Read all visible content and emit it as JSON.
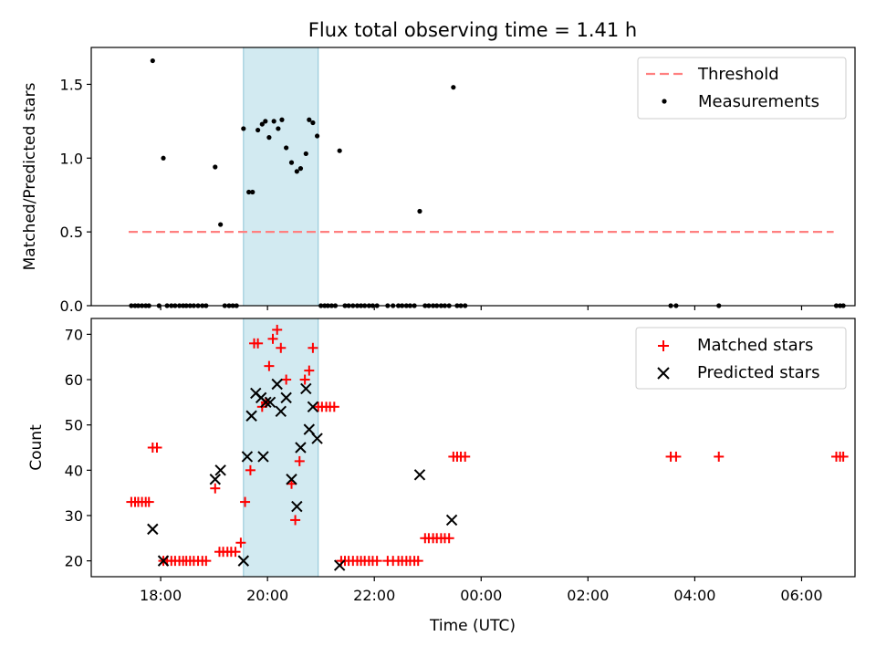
{
  "chart_data": [
    {
      "type": "scatter",
      "panel": "top",
      "title": "Flux total observing time = 1.41 h",
      "xlabel": "",
      "ylabel": "Matched/Predicted stars",
      "ylim": [
        0,
        1.75
      ],
      "yticks": [
        0.0,
        0.5,
        1.0,
        1.5
      ],
      "ytick_labels": [
        "0.0",
        "0.5",
        "1.0",
        "1.5"
      ],
      "xlim_hours": [
        16.7,
        31.0
      ],
      "highlight_span_hours": [
        19.55,
        20.95
      ],
      "threshold": {
        "name": "Threshold",
        "y": 0.5,
        "x_range_hours": [
          17.4,
          30.6
        ],
        "color": "#ff8080"
      },
      "legend": [
        "Threshold",
        "Measurements"
      ],
      "legend_position": "top-right",
      "series": [
        {
          "name": "Measurements",
          "color": "#000000",
          "points": [
            [
              17.45,
              0
            ],
            [
              17.52,
              0
            ],
            [
              17.58,
              0
            ],
            [
              17.65,
              0
            ],
            [
              17.72,
              0
            ],
            [
              17.78,
              0
            ],
            [
              17.85,
              1.66
            ],
            [
              17.97,
              0
            ],
            [
              18.05,
              1.0
            ],
            [
              18.12,
              0
            ],
            [
              18.2,
              0
            ],
            [
              18.27,
              0
            ],
            [
              18.35,
              0
            ],
            [
              18.42,
              0
            ],
            [
              18.48,
              0
            ],
            [
              18.55,
              0
            ],
            [
              18.62,
              0
            ],
            [
              18.7,
              0
            ],
            [
              18.78,
              0
            ],
            [
              18.85,
              0
            ],
            [
              19.02,
              0.94
            ],
            [
              19.12,
              0.55
            ],
            [
              19.2,
              0
            ],
            [
              19.28,
              0
            ],
            [
              19.35,
              0
            ],
            [
              19.42,
              0
            ],
            [
              19.55,
              1.2
            ],
            [
              19.65,
              0.77
            ],
            [
              19.72,
              0.77
            ],
            [
              19.82,
              1.19
            ],
            [
              19.9,
              1.23
            ],
            [
              19.96,
              1.25
            ],
            [
              20.03,
              1.14
            ],
            [
              20.12,
              1.25
            ],
            [
              20.2,
              1.2
            ],
            [
              20.27,
              1.26
            ],
            [
              20.35,
              1.07
            ],
            [
              20.45,
              0.97
            ],
            [
              20.55,
              0.91
            ],
            [
              20.62,
              0.93
            ],
            [
              20.72,
              1.03
            ],
            [
              20.78,
              1.26
            ],
            [
              20.85,
              1.24
            ],
            [
              20.93,
              1.15
            ],
            [
              21.0,
              0
            ],
            [
              21.07,
              0
            ],
            [
              21.13,
              0
            ],
            [
              21.2,
              0
            ],
            [
              21.27,
              0
            ],
            [
              21.35,
              1.05
            ],
            [
              21.45,
              0
            ],
            [
              21.52,
              0
            ],
            [
              21.6,
              0
            ],
            [
              21.68,
              0
            ],
            [
              21.75,
              0
            ],
            [
              21.82,
              0
            ],
            [
              21.9,
              0
            ],
            [
              21.97,
              0
            ],
            [
              22.05,
              0
            ],
            [
              22.25,
              0
            ],
            [
              22.35,
              0
            ],
            [
              22.45,
              0
            ],
            [
              22.52,
              0
            ],
            [
              22.6,
              0
            ],
            [
              22.67,
              0
            ],
            [
              22.75,
              0
            ],
            [
              22.85,
              0.64
            ],
            [
              22.95,
              0
            ],
            [
              23.02,
              0
            ],
            [
              23.1,
              0
            ],
            [
              23.17,
              0
            ],
            [
              23.25,
              0
            ],
            [
              23.32,
              0
            ],
            [
              23.4,
              0
            ],
            [
              23.48,
              1.48
            ],
            [
              23.55,
              0
            ],
            [
              23.62,
              0
            ],
            [
              23.7,
              0
            ],
            [
              27.55,
              0
            ],
            [
              27.65,
              0
            ],
            [
              28.45,
              0
            ],
            [
              30.65,
              0
            ],
            [
              30.72,
              0
            ],
            [
              30.78,
              0
            ]
          ]
        }
      ]
    },
    {
      "type": "scatter",
      "panel": "bottom",
      "title": "",
      "xlabel": "Time (UTC)",
      "ylabel": "Count",
      "ylim": [
        16.5,
        73.5
      ],
      "yticks": [
        20,
        30,
        40,
        50,
        60,
        70
      ],
      "ytick_labels": [
        "20",
        "30",
        "40",
        "50",
        "60",
        "70"
      ],
      "xlim_hours": [
        16.7,
        31.0
      ],
      "xticks_hours": [
        18,
        20,
        22,
        24,
        26,
        28,
        30
      ],
      "xtick_labels": [
        "18:00",
        "20:00",
        "22:00",
        "00:00",
        "02:00",
        "04:00",
        "06:00"
      ],
      "highlight_span_hours": [
        19.55,
        20.95
      ],
      "legend": [
        "Matched stars",
        "Predicted stars"
      ],
      "legend_position": "top-right",
      "series": [
        {
          "name": "Matched stars",
          "marker": "+",
          "color": "#ff0000",
          "points": [
            [
              17.45,
              33
            ],
            [
              17.52,
              33
            ],
            [
              17.58,
              33
            ],
            [
              17.65,
              33
            ],
            [
              17.72,
              33
            ],
            [
              17.78,
              33
            ],
            [
              17.85,
              45
            ],
            [
              17.93,
              45
            ],
            [
              18.05,
              20
            ],
            [
              18.12,
              20
            ],
            [
              18.2,
              20
            ],
            [
              18.27,
              20
            ],
            [
              18.35,
              20
            ],
            [
              18.42,
              20
            ],
            [
              18.48,
              20
            ],
            [
              18.55,
              20
            ],
            [
              18.62,
              20
            ],
            [
              18.7,
              20
            ],
            [
              18.78,
              20
            ],
            [
              18.85,
              20
            ],
            [
              19.02,
              36
            ],
            [
              19.1,
              22
            ],
            [
              19.17,
              22
            ],
            [
              19.25,
              22
            ],
            [
              19.32,
              22
            ],
            [
              19.4,
              22
            ],
            [
              19.5,
              24
            ],
            [
              19.58,
              33
            ],
            [
              19.68,
              40
            ],
            [
              19.75,
              68
            ],
            [
              19.82,
              68
            ],
            [
              19.9,
              54
            ],
            [
              19.97,
              55
            ],
            [
              20.03,
              63
            ],
            [
              20.1,
              69
            ],
            [
              20.18,
              71
            ],
            [
              20.25,
              67
            ],
            [
              20.35,
              60
            ],
            [
              20.45,
              37
            ],
            [
              20.52,
              29
            ],
            [
              20.6,
              42
            ],
            [
              20.7,
              60
            ],
            [
              20.78,
              62
            ],
            [
              20.85,
              67
            ],
            [
              20.95,
              54
            ],
            [
              21.02,
              54
            ],
            [
              21.1,
              54
            ],
            [
              21.17,
              54
            ],
            [
              21.25,
              54
            ],
            [
              21.38,
              20
            ],
            [
              21.45,
              20
            ],
            [
              21.52,
              20
            ],
            [
              21.6,
              20
            ],
            [
              21.68,
              20
            ],
            [
              21.75,
              20
            ],
            [
              21.82,
              20
            ],
            [
              21.9,
              20
            ],
            [
              21.97,
              20
            ],
            [
              22.05,
              20
            ],
            [
              22.25,
              20
            ],
            [
              22.35,
              20
            ],
            [
              22.45,
              20
            ],
            [
              22.52,
              20
            ],
            [
              22.6,
              20
            ],
            [
              22.67,
              20
            ],
            [
              22.75,
              20
            ],
            [
              22.82,
              20
            ],
            [
              22.95,
              25
            ],
            [
              23.02,
              25
            ],
            [
              23.1,
              25
            ],
            [
              23.17,
              25
            ],
            [
              23.25,
              25
            ],
            [
              23.32,
              25
            ],
            [
              23.4,
              25
            ],
            [
              23.48,
              43
            ],
            [
              23.55,
              43
            ],
            [
              23.62,
              43
            ],
            [
              23.7,
              43
            ],
            [
              27.55,
              43
            ],
            [
              27.65,
              43
            ],
            [
              28.45,
              43
            ],
            [
              30.65,
              43
            ],
            [
              30.72,
              43
            ],
            [
              30.78,
              43
            ]
          ]
        },
        {
          "name": "Predicted stars",
          "marker": "x",
          "color": "#000000",
          "points": [
            [
              17.85,
              27
            ],
            [
              18.05,
              20
            ],
            [
              19.02,
              38
            ],
            [
              19.12,
              40
            ],
            [
              19.55,
              20
            ],
            [
              19.62,
              43
            ],
            [
              19.7,
              52
            ],
            [
              19.78,
              57
            ],
            [
              19.88,
              56
            ],
            [
              19.92,
              43
            ],
            [
              19.97,
              55
            ],
            [
              20.05,
              55
            ],
            [
              20.18,
              59
            ],
            [
              20.25,
              53
            ],
            [
              20.35,
              56
            ],
            [
              20.45,
              38
            ],
            [
              20.55,
              32
            ],
            [
              20.62,
              45
            ],
            [
              20.72,
              58
            ],
            [
              20.78,
              49
            ],
            [
              20.85,
              54
            ],
            [
              20.93,
              47
            ],
            [
              21.35,
              19
            ],
            [
              22.85,
              39
            ],
            [
              23.45,
              29
            ]
          ]
        }
      ]
    }
  ]
}
